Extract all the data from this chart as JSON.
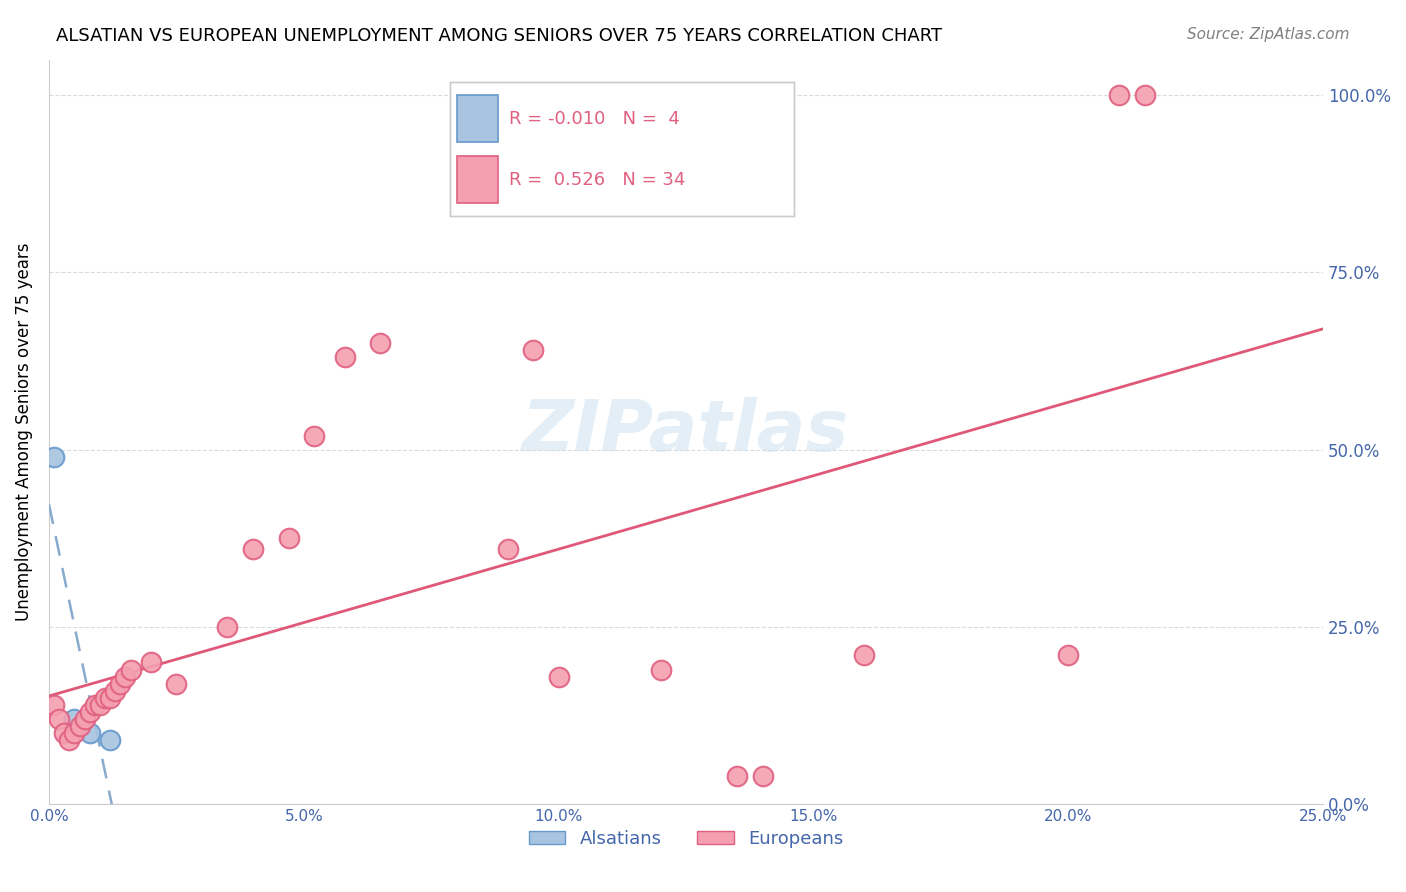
{
  "title": "ALSATIAN VS EUROPEAN UNEMPLOYMENT AMONG SENIORS OVER 75 YEARS CORRELATION CHART",
  "source": "Source: ZipAtlas.com",
  "xlabel": "",
  "ylabel": "Unemployment Among Seniors over 75 years",
  "xlim": [
    0.0,
    0.25
  ],
  "ylim": [
    0.0,
    1.05
  ],
  "xticks": [
    0.0,
    0.05,
    0.1,
    0.15,
    0.2,
    0.25
  ],
  "yticks_right": [
    0.0,
    0.25,
    0.5,
    0.75,
    1.0
  ],
  "alsatian_R": -0.01,
  "alsatian_N": 4,
  "european_R": 0.526,
  "european_N": 34,
  "alsatian_color": "#a8c4e0",
  "european_color": "#f4a0b0",
  "alsatian_edge": "#6699cc",
  "european_edge": "#e06080",
  "trend_alsatian_color": "#88aacc",
  "trend_european_color": "#e05878",
  "watermark": "ZIPatlas",
  "alsatian_points_x": [
    0.001,
    0.005,
    0.008,
    0.012
  ],
  "alsatian_points_y": [
    0.49,
    0.12,
    0.1,
    0.09
  ],
  "european_points_x": [
    0.001,
    0.002,
    0.003,
    0.004,
    0.005,
    0.006,
    0.007,
    0.008,
    0.009,
    0.01,
    0.011,
    0.012,
    0.013,
    0.014,
    0.015,
    0.016,
    0.02,
    0.025,
    0.035,
    0.04,
    0.047,
    0.052,
    0.058,
    0.065,
    0.09,
    0.095,
    0.1,
    0.12,
    0.135,
    0.14,
    0.16,
    0.2,
    0.21,
    0.215
  ],
  "european_points_y": [
    0.14,
    0.12,
    0.1,
    0.09,
    0.1,
    0.11,
    0.12,
    0.13,
    0.14,
    0.14,
    0.15,
    0.15,
    0.16,
    0.17,
    0.18,
    0.19,
    0.2,
    0.17,
    0.25,
    0.36,
    0.375,
    0.52,
    0.63,
    0.65,
    0.36,
    0.64,
    0.18,
    0.19,
    0.04,
    0.04,
    0.21,
    0.21,
    1.0,
    1.0
  ],
  "background_color": "#ffffff",
  "grid_color": "#cccccc",
  "axis_label_color": "#4466aa",
  "tick_label_color": "#4466aa"
}
